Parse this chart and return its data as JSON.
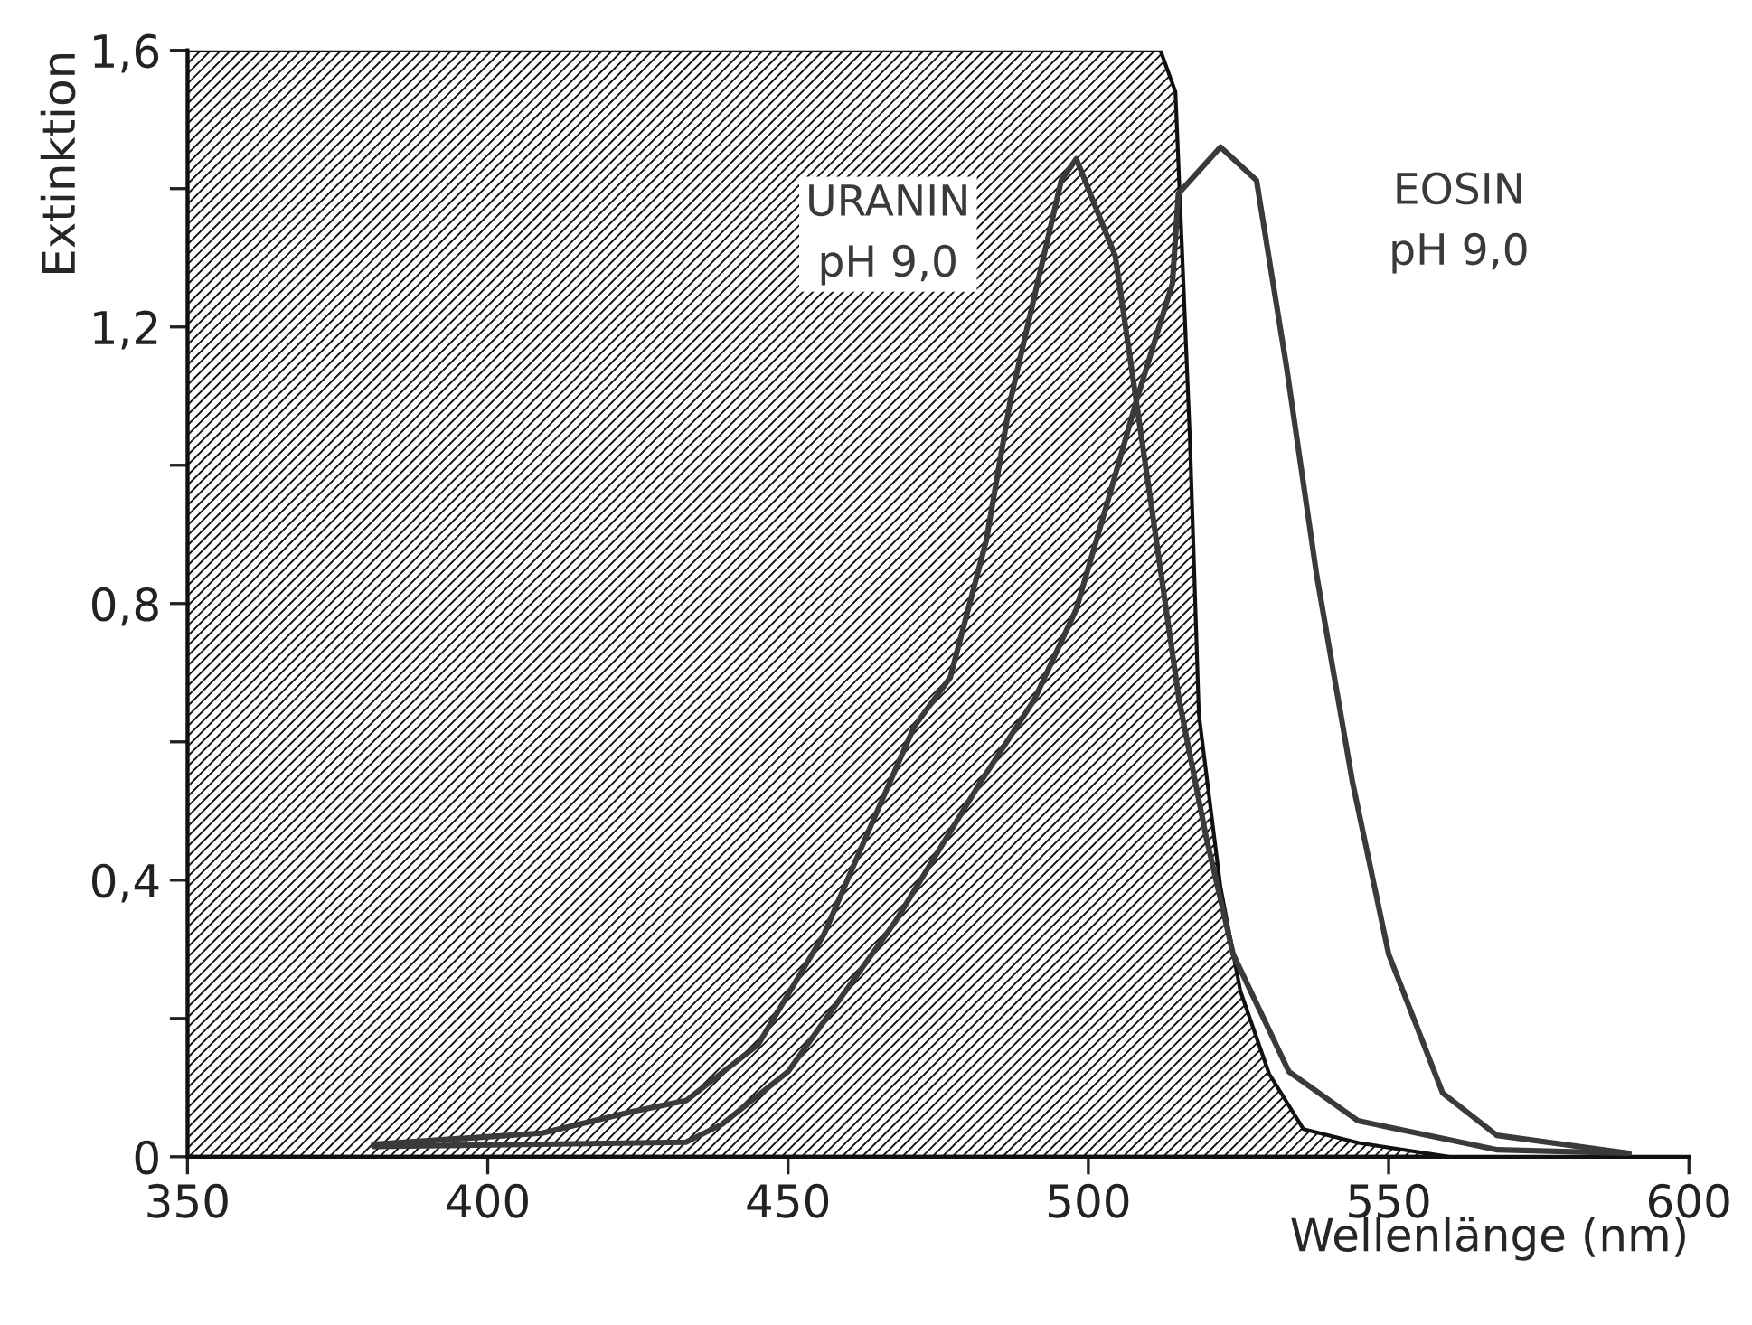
{
  "chart_data": {
    "type": "line",
    "xlabel": "Wellenlänge (nm)",
    "ylabel": "Extinktion",
    "xlim": [
      350,
      600
    ],
    "ylim": [
      0,
      1.6
    ],
    "xticks": [
      350,
      400,
      450,
      500,
      550,
      600
    ],
    "yticks": [
      {
        "value": 0,
        "label": "0"
      },
      {
        "value": 0.2,
        "label": null
      },
      {
        "value": 0.4,
        "label": "0,4"
      },
      {
        "value": 0.6,
        "label": null
      },
      {
        "value": 0.8,
        "label": "0,8"
      },
      {
        "value": 1.0,
        "label": null
      },
      {
        "value": 1.2,
        "label": "1,2"
      },
      {
        "value": 1.4,
        "label": null
      },
      {
        "value": 1.6,
        "label": "1,6"
      }
    ],
    "grid": false,
    "legend": false,
    "series": [
      {
        "type": "area",
        "color": "#111111",
        "x": [
          350,
          512,
          514.5,
          516.9,
          518.4,
          522.0,
          525.3,
          530.1,
          535.8,
          545,
          560
        ],
        "values": [
          1.6,
          1.6,
          1.54,
          1.04,
          0.64,
          0.39,
          0.24,
          0.12,
          0.04,
          0.02,
          0.0
        ]
      },
      {
        "name": "URANIN\npH 9,0",
        "color": "#3a3a3a",
        "x": [
          381,
          409,
          424,
          433,
          445,
          456,
          463,
          471,
          477,
          483,
          487,
          492,
          495.5,
          498,
          504.5,
          510.5,
          515.1,
          519.6,
          524.1,
          533.4,
          544.9,
          568.1,
          590
        ],
        "values": [
          0.018,
          0.034,
          0.065,
          0.081,
          0.162,
          0.322,
          0.463,
          0.622,
          0.693,
          0.891,
          1.093,
          1.281,
          1.412,
          1.443,
          1.302,
          0.941,
          0.661,
          0.463,
          0.293,
          0.123,
          0.052,
          0.01,
          0.005
        ]
      },
      {
        "name": "EOSIN\npH 9,0",
        "color": "#3a3a3a",
        "x": [
          381,
          409,
          433,
          439,
          450,
          468,
          482,
          491,
          498,
          503,
          508,
          514,
          515,
          522,
          528,
          533,
          538,
          544,
          550,
          559,
          568,
          590
        ],
        "values": [
          0.015,
          0.018,
          0.021,
          0.047,
          0.123,
          0.342,
          0.541,
          0.661,
          0.792,
          0.941,
          1.093,
          1.263,
          1.393,
          1.46,
          1.412,
          1.142,
          0.842,
          0.541,
          0.293,
          0.092,
          0.031,
          0.005
        ]
      }
    ]
  }
}
